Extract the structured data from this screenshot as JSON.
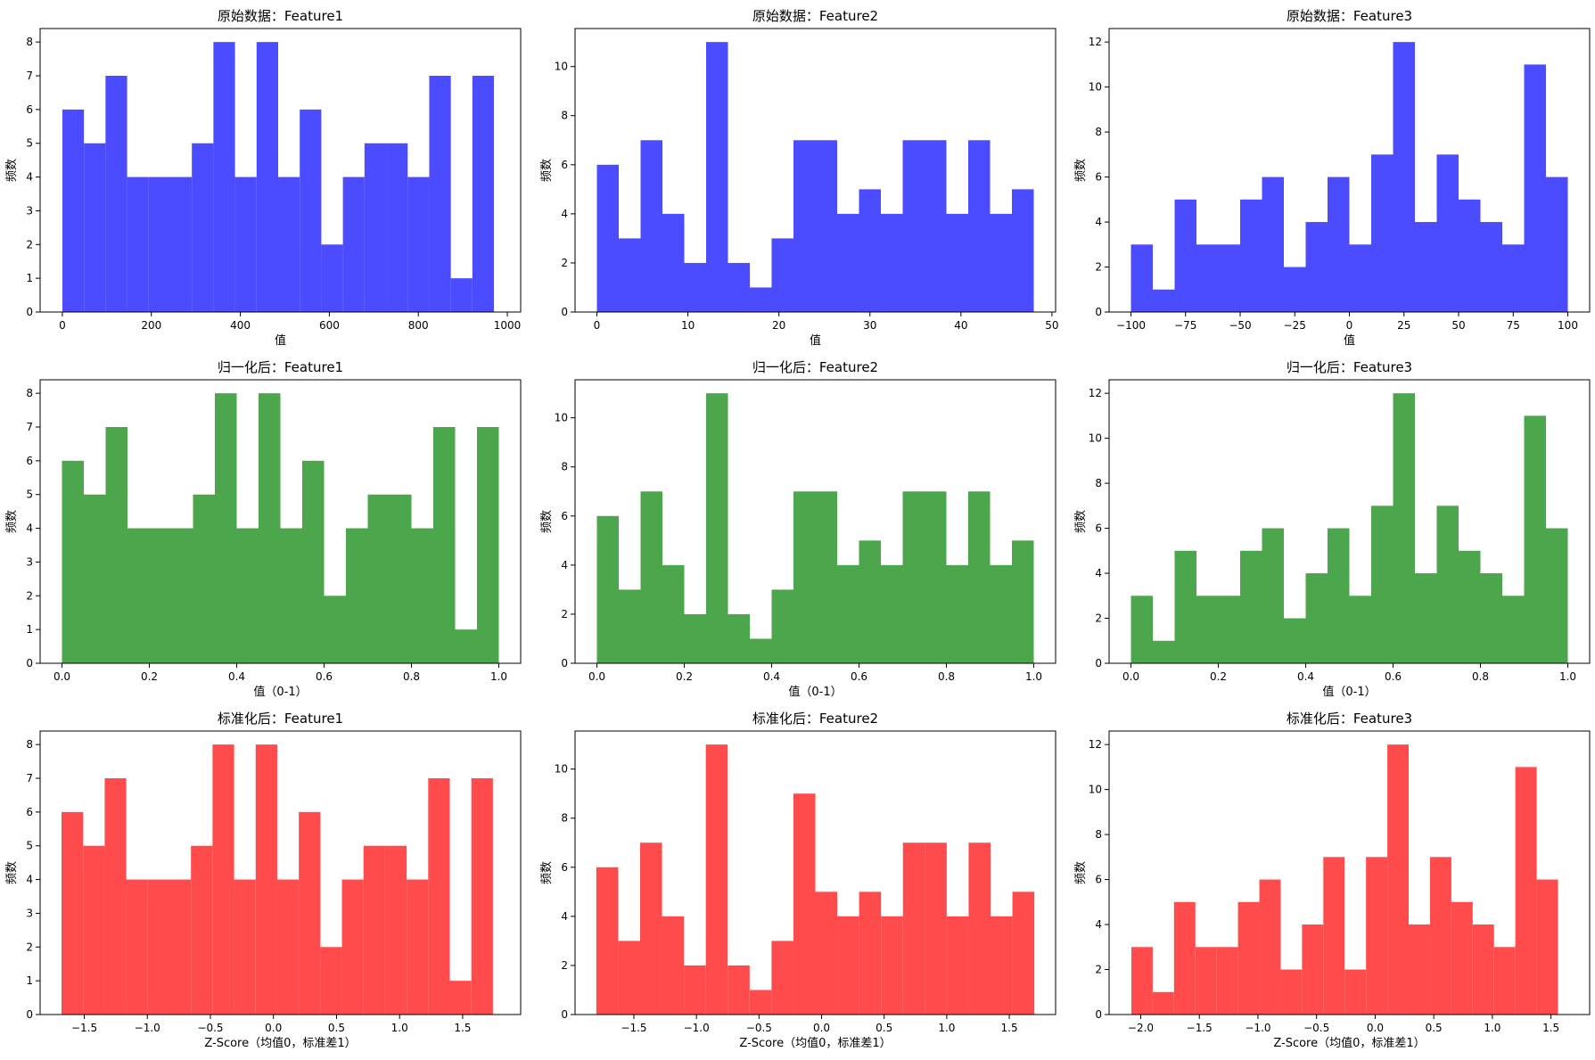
{
  "chart_data": [
    {
      "type": "bar",
      "title": "原始数据：Feature1",
      "xlabel": "值",
      "ylabel": "频数",
      "color": "#4b4bff",
      "xlim": [
        -50,
        1030
      ],
      "ylim": [
        0,
        8.4
      ],
      "bin_edges": [
        0,
        48.5,
        97,
        145.5,
        194,
        242.5,
        291,
        339.5,
        388,
        436.5,
        485,
        533.5,
        582,
        630.5,
        679,
        727.5,
        776,
        824.5,
        873,
        921.5,
        970
      ],
      "values": [
        6,
        5,
        7,
        4,
        4,
        4,
        5,
        8,
        4,
        8,
        4,
        6,
        2,
        4,
        5,
        5,
        4,
        7,
        1,
        7
      ],
      "xticks": [
        0,
        200,
        400,
        600,
        800,
        1000
      ],
      "xtick_labels": [
        "0",
        "200",
        "400",
        "600",
        "800",
        "1000"
      ],
      "yticks": [
        0,
        1,
        2,
        3,
        4,
        5,
        6,
        7,
        8
      ],
      "ytick_labels": [
        "0",
        "1",
        "2",
        "3",
        "4",
        "5",
        "6",
        "7",
        "8"
      ]
    },
    {
      "type": "bar",
      "title": "原始数据：Feature2",
      "xlabel": "值",
      "ylabel": "频数",
      "color": "#4b4bff",
      "xlim": [
        -2.4,
        50.4
      ],
      "ylim": [
        0,
        11.55
      ],
      "bin_edges": [
        0,
        2.4,
        4.8,
        7.2,
        9.6,
        12,
        14.4,
        16.8,
        19.2,
        21.6,
        24,
        26.4,
        28.8,
        31.2,
        33.6,
        36,
        38.4,
        40.8,
        43.2,
        45.6,
        48
      ],
      "values": [
        6,
        3,
        7,
        4,
        2,
        11,
        2,
        1,
        3,
        7,
        7,
        4,
        5,
        4,
        7,
        7,
        4,
        7,
        4,
        5
      ],
      "xticks": [
        0,
        10,
        20,
        30,
        40,
        50
      ],
      "xtick_labels": [
        "0",
        "10",
        "20",
        "30",
        "40",
        "50"
      ],
      "yticks": [
        0,
        2,
        4,
        6,
        8,
        10
      ],
      "ytick_labels": [
        "0",
        "2",
        "4",
        "6",
        "8",
        "10"
      ]
    },
    {
      "type": "bar",
      "title": "原始数据：Feature3",
      "xlabel": "值",
      "ylabel": "频数",
      "color": "#4b4bff",
      "xlim": [
        -110,
        110
      ],
      "ylim": [
        0,
        12.6
      ],
      "bin_edges": [
        -100,
        -90,
        -80,
        -70,
        -60,
        -50,
        -40,
        -30,
        -20,
        -10,
        0,
        10,
        20,
        30,
        40,
        50,
        60,
        70,
        80,
        90,
        100
      ],
      "values": [
        3,
        1,
        5,
        3,
        3,
        5,
        6,
        2,
        4,
        6,
        3,
        7,
        12,
        4,
        7,
        5,
        4,
        3,
        11,
        6
      ],
      "xticks": [
        -100,
        -75,
        -50,
        -25,
        0,
        25,
        50,
        75,
        100
      ],
      "xtick_labels": [
        "−100",
        "−75",
        "−50",
        "−25",
        "0",
        "25",
        "50",
        "75",
        "100"
      ],
      "yticks": [
        0,
        2,
        4,
        6,
        8,
        10,
        12
      ],
      "ytick_labels": [
        "0",
        "2",
        "4",
        "6",
        "8",
        "10",
        "12"
      ]
    },
    {
      "type": "bar",
      "title": "归一化后：Feature1",
      "xlabel": "值（0-1）",
      "ylabel": "频数",
      "color": "#4ca64c",
      "xlim": [
        -0.05,
        1.05
      ],
      "ylim": [
        0,
        8.4
      ],
      "bin_edges": [
        0,
        0.05,
        0.1,
        0.15,
        0.2,
        0.25,
        0.3,
        0.35,
        0.4,
        0.45,
        0.5,
        0.55,
        0.6,
        0.65,
        0.7,
        0.75,
        0.8,
        0.85,
        0.9,
        0.95,
        1.0
      ],
      "values": [
        6,
        5,
        7,
        4,
        4,
        4,
        5,
        8,
        4,
        8,
        4,
        6,
        2,
        4,
        5,
        5,
        4,
        7,
        1,
        7
      ],
      "xticks": [
        0,
        0.2,
        0.4,
        0.6,
        0.8,
        1.0
      ],
      "xtick_labels": [
        "0.0",
        "0.2",
        "0.4",
        "0.6",
        "0.8",
        "1.0"
      ],
      "yticks": [
        0,
        1,
        2,
        3,
        4,
        5,
        6,
        7,
        8
      ],
      "ytick_labels": [
        "0",
        "1",
        "2",
        "3",
        "4",
        "5",
        "6",
        "7",
        "8"
      ]
    },
    {
      "type": "bar",
      "title": "归一化后：Feature2",
      "xlabel": "值（0-1）",
      "ylabel": "频数",
      "color": "#4ca64c",
      "xlim": [
        -0.05,
        1.05
      ],
      "ylim": [
        0,
        11.55
      ],
      "bin_edges": [
        0,
        0.05,
        0.1,
        0.15,
        0.2,
        0.25,
        0.3,
        0.35,
        0.4,
        0.45,
        0.5,
        0.55,
        0.6,
        0.65,
        0.7,
        0.75,
        0.8,
        0.85,
        0.9,
        0.95,
        1.0
      ],
      "values": [
        6,
        3,
        7,
        4,
        2,
        11,
        2,
        1,
        3,
        7,
        7,
        4,
        5,
        4,
        7,
        7,
        4,
        7,
        4,
        5
      ],
      "xticks": [
        0,
        0.2,
        0.4,
        0.6,
        0.8,
        1.0
      ],
      "xtick_labels": [
        "0.0",
        "0.2",
        "0.4",
        "0.6",
        "0.8",
        "1.0"
      ],
      "yticks": [
        0,
        2,
        4,
        6,
        8,
        10
      ],
      "ytick_labels": [
        "0",
        "2",
        "4",
        "6",
        "8",
        "10"
      ]
    },
    {
      "type": "bar",
      "title": "归一化后：Feature3",
      "xlabel": "值（0-1）",
      "ylabel": "频数",
      "color": "#4ca64c",
      "xlim": [
        -0.05,
        1.05
      ],
      "ylim": [
        0,
        12.6
      ],
      "bin_edges": [
        0,
        0.05,
        0.1,
        0.15,
        0.2,
        0.25,
        0.3,
        0.35,
        0.4,
        0.45,
        0.5,
        0.55,
        0.6,
        0.65,
        0.7,
        0.75,
        0.8,
        0.85,
        0.9,
        0.95,
        1.0
      ],
      "values": [
        3,
        1,
        5,
        3,
        3,
        5,
        6,
        2,
        4,
        6,
        3,
        7,
        12,
        4,
        7,
        5,
        4,
        3,
        11,
        6
      ],
      "xticks": [
        0,
        0.2,
        0.4,
        0.6,
        0.8,
        1.0
      ],
      "xtick_labels": [
        "0.0",
        "0.2",
        "0.4",
        "0.6",
        "0.8",
        "1.0"
      ],
      "yticks": [
        0,
        2,
        4,
        6,
        8,
        10,
        12
      ],
      "ytick_labels": [
        "0",
        "2",
        "4",
        "6",
        "8",
        "10",
        "12"
      ]
    },
    {
      "type": "bar",
      "title": "标准化后：Feature1",
      "xlabel": "Z-Score（均值0，标准差1）",
      "ylabel": "频数",
      "color": "#ff4b4b",
      "xlim": [
        -1.85,
        1.96
      ],
      "ylim": [
        0,
        8.4
      ],
      "bin_edges": [
        -1.68,
        -1.509,
        -1.338,
        -1.167,
        -0.996,
        -0.825,
        -0.654,
        -0.483,
        -0.312,
        -0.141,
        0.03,
        0.201,
        0.372,
        0.543,
        0.714,
        0.885,
        1.056,
        1.227,
        1.398,
        1.569,
        1.74
      ],
      "values": [
        6,
        5,
        7,
        4,
        4,
        4,
        5,
        8,
        4,
        8,
        4,
        6,
        2,
        4,
        5,
        5,
        4,
        7,
        1,
        7
      ],
      "xticks": [
        -1.5,
        -1.0,
        -0.5,
        0.0,
        0.5,
        1.0,
        1.5
      ],
      "xtick_labels": [
        "−1.5",
        "−1.0",
        "−0.5",
        "0.0",
        "0.5",
        "1.0",
        "1.5"
      ],
      "yticks": [
        0,
        1,
        2,
        3,
        4,
        5,
        6,
        7,
        8
      ],
      "ytick_labels": [
        "0",
        "1",
        "2",
        "3",
        "4",
        "5",
        "6",
        "7",
        "8"
      ]
    },
    {
      "type": "bar",
      "title": "标准化后：Feature2",
      "xlabel": "Z-Score（均值0，标准差1）",
      "ylabel": "频数",
      "color": "#ff4b4b",
      "xlim": [
        -1.97,
        1.87
      ],
      "ylim": [
        0,
        11.55
      ],
      "bin_edges": [
        -1.8,
        -1.625,
        -1.45,
        -1.275,
        -1.1,
        -0.925,
        -0.75,
        -0.575,
        -0.4,
        -0.225,
        -0.05,
        0.125,
        0.3,
        0.475,
        0.65,
        0.825,
        1.0,
        1.175,
        1.35,
        1.525,
        1.7
      ],
      "values": [
        6,
        3,
        7,
        4,
        2,
        11,
        2,
        1,
        3,
        9,
        5,
        4,
        5,
        4,
        7,
        7,
        4,
        7,
        4,
        5
      ],
      "xticks": [
        -1.5,
        -1.0,
        -0.5,
        0.0,
        0.5,
        1.0,
        1.5
      ],
      "xtick_labels": [
        "−1.5",
        "−1.0",
        "−0.5",
        "0.0",
        "0.5",
        "1.0",
        "1.5"
      ],
      "yticks": [
        0,
        2,
        4,
        6,
        8,
        10
      ],
      "ytick_labels": [
        "0",
        "2",
        "4",
        "6",
        "8",
        "10"
      ]
    },
    {
      "type": "bar",
      "title": "标准化后：Feature3",
      "xlabel": "Z-Score（均值0，标准差1）",
      "ylabel": "频数",
      "color": "#ff4b4b",
      "xlim": [
        -2.27,
        1.83
      ],
      "ylim": [
        0,
        12.6
      ],
      "bin_edges": [
        -2.08,
        -1.898,
        -1.716,
        -1.534,
        -1.352,
        -1.17,
        -0.988,
        -0.806,
        -0.624,
        -0.442,
        -0.26,
        -0.078,
        0.104,
        0.286,
        0.468,
        0.65,
        0.832,
        1.014,
        1.196,
        1.378,
        1.56
      ],
      "values": [
        3,
        1,
        5,
        3,
        3,
        5,
        6,
        2,
        4,
        7,
        2,
        7,
        12,
        4,
        7,
        5,
        4,
        3,
        11,
        6
      ],
      "xticks": [
        -2.0,
        -1.5,
        -1.0,
        -0.5,
        0.0,
        0.5,
        1.0,
        1.5
      ],
      "xtick_labels": [
        "−2.0",
        "−1.5",
        "−1.0",
        "−0.5",
        "0.0",
        "0.5",
        "1.0",
        "1.5"
      ],
      "yticks": [
        0,
        2,
        4,
        6,
        8,
        10,
        12
      ],
      "ytick_labels": [
        "0",
        "2",
        "4",
        "6",
        "8",
        "10",
        "12"
      ]
    }
  ]
}
